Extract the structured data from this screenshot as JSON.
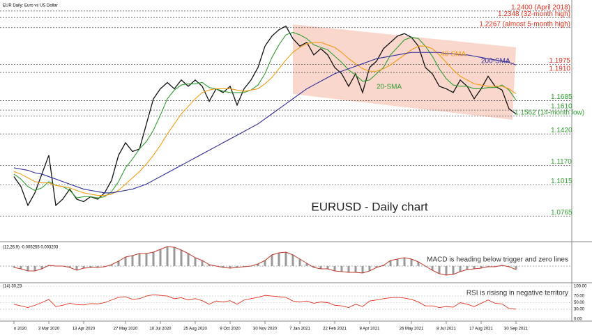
{
  "chart_data": {
    "type": "line",
    "header": "EUR Daily: Euro vs US Dollar",
    "title": "EURUSD - Daily chart",
    "categories": [
      "n 2020",
      null,
      null,
      null,
      null,
      "3 Mar 2020",
      null,
      null,
      null,
      null,
      "13 Apr 2020",
      null,
      null,
      null,
      null,
      null,
      "27 May 2020",
      null,
      null,
      null,
      null,
      "10 Jul 2020",
      null,
      null,
      null,
      null,
      "25 Aug 2020",
      null,
      null,
      null,
      null,
      "9 Oct 2020",
      null,
      null,
      null,
      null,
      "30 Nov 2020",
      null,
      null,
      null,
      null,
      "7 Jan 2021",
      null,
      null,
      null,
      null,
      "22 Feb 2021",
      null,
      null,
      null,
      null,
      "9 Apr 2021",
      null,
      null,
      null,
      null,
      null,
      "26 May 2021",
      null,
      null,
      null,
      null,
      "8 Jul 2021",
      null,
      null,
      null,
      null,
      "17 Aug 2021",
      null,
      null,
      null,
      null,
      "30 Sep 2021"
    ],
    "ylim": [
      1.06,
      1.246
    ],
    "series": [
      {
        "name": "EURUSD",
        "color": "#111111",
        "values": [
          1.108,
          1.1,
          1.085,
          1.095,
          1.11,
          1.125,
          1.085,
          1.09,
          1.098,
          1.09,
          1.088,
          1.092,
          1.09,
          1.095,
          1.105,
          1.125,
          1.135,
          1.128,
          1.13,
          1.15,
          1.17,
          1.178,
          1.183,
          1.178,
          1.185,
          1.18,
          1.185,
          1.18,
          1.168,
          1.178,
          1.175,
          1.18,
          1.165,
          1.178,
          1.185,
          1.195,
          1.212,
          1.22,
          1.225,
          1.228,
          1.218,
          1.212,
          1.215,
          1.205,
          1.21,
          1.205,
          1.195,
          1.19,
          1.18,
          1.19,
          1.175,
          1.195,
          1.2,
          1.21,
          1.215,
          1.22,
          1.222,
          1.219,
          1.212,
          1.195,
          1.19,
          1.18,
          1.178,
          1.175,
          1.185,
          1.18,
          1.17,
          1.178,
          1.188,
          1.18,
          1.177,
          1.162,
          1.158
        ]
      },
      {
        "name": "20-SMA",
        "color": "#2e9e2e",
        "values": [
          1.11,
          1.106,
          1.1,
          1.097,
          1.099,
          1.104,
          1.101,
          1.1,
          1.097,
          1.091,
          1.092,
          1.092,
          1.091,
          1.092,
          1.096,
          1.104,
          1.115,
          1.122,
          1.13,
          1.136,
          1.145,
          1.157,
          1.17,
          1.177,
          1.181,
          1.182,
          1.182,
          1.183,
          1.179,
          1.178,
          1.176,
          1.175,
          1.175,
          1.175,
          1.177,
          1.181,
          1.19,
          1.203,
          1.213,
          1.221,
          1.223,
          1.221,
          1.218,
          1.213,
          1.211,
          1.209,
          1.204,
          1.199,
          1.193,
          1.189,
          1.184,
          1.185,
          1.19,
          1.195,
          1.205,
          1.211,
          1.217,
          1.219,
          1.218,
          1.212,
          1.204,
          1.194,
          1.186,
          1.181,
          1.18,
          1.18,
          1.178,
          1.178,
          1.179,
          1.179,
          1.181,
          1.177,
          1.169
        ]
      },
      {
        "name": "40-SMA",
        "color": "#f39c12",
        "values": [
          1.112,
          1.11,
          1.107,
          1.104,
          1.103,
          1.103,
          1.101,
          1.1,
          1.099,
          1.097,
          1.095,
          1.094,
          1.093,
          1.093,
          1.094,
          1.097,
          1.102,
          1.107,
          1.112,
          1.118,
          1.125,
          1.133,
          1.142,
          1.15,
          1.158,
          1.164,
          1.17,
          1.175,
          1.177,
          1.178,
          1.178,
          1.178,
          1.177,
          1.176,
          1.177,
          1.178,
          1.182,
          1.187,
          1.194,
          1.201,
          1.207,
          1.211,
          1.214,
          1.215,
          1.215,
          1.213,
          1.211,
          1.207,
          1.202,
          1.198,
          1.194,
          1.192,
          1.192,
          1.194,
          1.197,
          1.201,
          1.205,
          1.209,
          1.212,
          1.212,
          1.21,
          1.205,
          1.199,
          1.193,
          1.188,
          1.185,
          1.182,
          1.181,
          1.18,
          1.18,
          1.18,
          1.178,
          1.174
        ]
      },
      {
        "name": "200-SMA",
        "color": "#2b2b95",
        "values": [
          1.115,
          1.114,
          1.113,
          1.111,
          1.11,
          1.108,
          1.106,
          1.104,
          1.102,
          1.1,
          1.098,
          1.097,
          1.096,
          1.095,
          1.095,
          1.096,
          1.097,
          1.098,
          1.1,
          1.102,
          1.105,
          1.108,
          1.111,
          1.114,
          1.117,
          1.12,
          1.123,
          1.126,
          1.129,
          1.132,
          1.135,
          1.138,
          1.141,
          1.144,
          1.147,
          1.15,
          1.154,
          1.158,
          1.162,
          1.166,
          1.17,
          1.174,
          1.178,
          1.181,
          1.184,
          1.187,
          1.19,
          1.192,
          1.194,
          1.196,
          1.198,
          1.2,
          1.202,
          1.203,
          1.204,
          1.205,
          1.206,
          1.207,
          1.207,
          1.207,
          1.207,
          1.207,
          1.206,
          1.206,
          1.205,
          1.205,
          1.204,
          1.203,
          1.202,
          1.201,
          1.2,
          1.199,
          1.197
        ]
      }
    ],
    "levels": [
      {
        "value": 1.24,
        "label": "1.2400 (April 2018)",
        "color": "#e0301e"
      },
      {
        "value": 1.2348,
        "label": "1.2348 (32-month high)",
        "color": "#e0301e"
      },
      {
        "value": 1.2267,
        "label": "1.2267 (almost 5-month high)",
        "color": "#e0301e"
      },
      {
        "value": 1.1975,
        "label": "1.1975",
        "color": "#e0301e"
      },
      {
        "value": 1.191,
        "label": "1.1910",
        "color": "#e0301e"
      },
      {
        "value": 1.1685,
        "label": "1.1685",
        "color": "#2e9e2e"
      },
      {
        "value": 1.161,
        "label": "1.1610",
        "color": "#2e9e2e"
      },
      {
        "value": 1.1562,
        "label": "1.1562 (14-month low)",
        "color": "#2e9e2e"
      },
      {
        "value": 1.142,
        "label": "1.1420",
        "color": "#2e9e2e"
      },
      {
        "value": 1.117,
        "label": "1.1170",
        "color": "#2e9e2e"
      },
      {
        "value": 1.1015,
        "label": "1.1015",
        "color": "#2e9e2e"
      },
      {
        "value": 1.0765,
        "label": "1.0765",
        "color": "#2e9e2e"
      }
    ],
    "macd": {
      "header": "(12,26,9) -0.005255 0.003203",
      "annotation": "MACD is heading below trigger and zero lines",
      "ylim": [
        -0.02,
        0.03
      ],
      "color": "#c0392b",
      "values": [
        -0.002,
        -0.004,
        -0.007,
        -0.007,
        -0.004,
        0.001,
        0,
        0,
        -0.002,
        -0.006,
        -0.003,
        -0.002,
        -0.002,
        -0.001,
        0.002,
        0.007,
        0.013,
        0.015,
        0.018,
        0.018,
        0.02,
        0.024,
        0.028,
        0.027,
        0.023,
        0.018,
        0.012,
        0.008,
        0.002,
        0,
        -0.002,
        -0.003,
        -0.002,
        -0.001,
        0,
        0.003,
        0.008,
        0.016,
        0.019,
        0.02,
        0.016,
        0.01,
        0.004,
        -0.002,
        -0.004,
        -0.004,
        -0.007,
        -0.008,
        -0.009,
        -0.009,
        -0.01,
        -0.007,
        -0.002,
        0.001,
        0.008,
        0.01,
        0.012,
        0.01,
        0.006,
        0,
        -0.006,
        -0.011,
        -0.013,
        -0.012,
        -0.008,
        -0.005,
        -0.004,
        -0.003,
        -0.001,
        -0.001,
        0.001,
        -0.001,
        -0.005
      ]
    },
    "rsi": {
      "header": "(14) 30.23",
      "annotation": "RSI is risisng in negative territory",
      "ylim": [
        0,
        100
      ],
      "yticks": [
        {
          "value": 0,
          "label": "0.00"
        },
        {
          "value": 30,
          "label": "30.00"
        },
        {
          "value": 50,
          "label": "50.00"
        },
        {
          "value": 70,
          "label": "70.00"
        },
        {
          "value": 100,
          "label": "100.00"
        }
      ],
      "color": "#e0301e",
      "values": [
        45,
        40,
        35,
        42,
        50,
        60,
        38,
        42,
        48,
        44,
        43,
        47,
        46,
        50,
        58,
        66,
        68,
        60,
        62,
        70,
        74,
        72,
        70,
        62,
        65,
        58,
        62,
        56,
        45,
        55,
        52,
        56,
        45,
        58,
        62,
        66,
        72,
        70,
        68,
        66,
        55,
        52,
        55,
        48,
        52,
        50,
        42,
        40,
        35,
        45,
        38,
        55,
        58,
        62,
        65,
        66,
        64,
        60,
        52,
        40,
        40,
        35,
        38,
        36,
        50,
        45,
        38,
        48,
        58,
        48,
        46,
        32,
        30
      ]
    }
  }
}
